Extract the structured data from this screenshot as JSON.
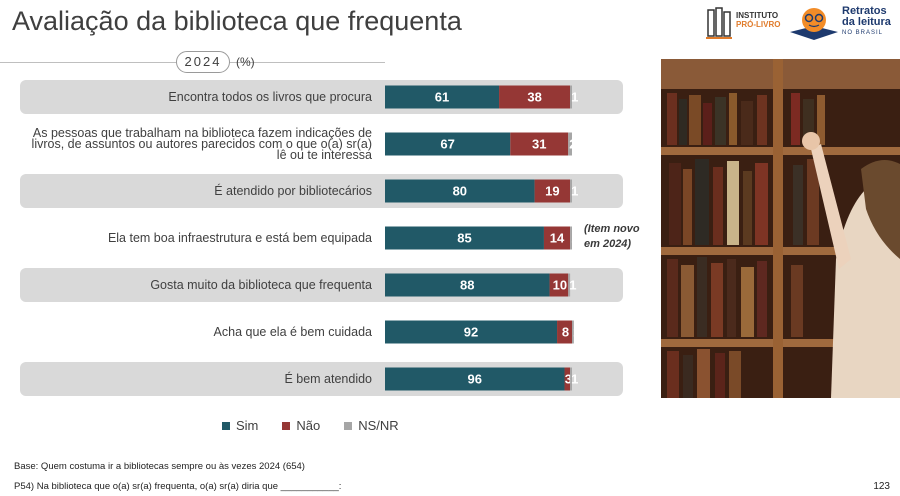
{
  "title": "Avaliação da biblioteca que frequenta",
  "year": "2024",
  "unit": "(%)",
  "note": "(Item novo em 2024)",
  "logos": {
    "left": {
      "line1": "INSTITUTO",
      "line2": "PRÓ-LIVRO"
    },
    "right": {
      "line1": "Retratos",
      "line2": "da leitura",
      "line3": "NO BRASIL"
    }
  },
  "legend": [
    {
      "label": "Sim",
      "color": "#215967"
    },
    {
      "label": "Não",
      "color": "#953735"
    },
    {
      "label": "NS/NR",
      "color": "#a6a6a6"
    }
  ],
  "chart_data": {
    "type": "bar",
    "orientation": "horizontal",
    "stacked": true,
    "categories": [
      "Encontra todos os livros que procura",
      "As pessoas que trabalham na biblioteca fazem indicações de livros, de assuntos ou autores parecidos com o que o(a) sr(a) lê ou te interessa",
      "É atendido por bibliotecários",
      "Ela tem boa infraestrutura e está bem equipada",
      "Gosta muito da biblioteca que frequenta",
      "Acha que ela é bem cuidada",
      "É bem atendido"
    ],
    "series": [
      {
        "name": "Sim",
        "values": [
          61,
          67,
          80,
          85,
          88,
          92,
          96
        ]
      },
      {
        "name": "Não",
        "values": [
          38,
          31,
          19,
          14,
          10,
          8,
          3
        ]
      },
      {
        "name": "NS/NR",
        "values": [
          1,
          2,
          1,
          1,
          1,
          1,
          1
        ]
      }
    ],
    "xlim": [
      0,
      100
    ]
  },
  "footnotes": {
    "base": "Base: Quem costuma ir a bibliotecas sempre ou às vezes  2024 (654)",
    "question": "P54) Na biblioteca que o(a) sr(a) frequenta, o(a) sr(a) diria que ___________:"
  },
  "page_number": "123"
}
